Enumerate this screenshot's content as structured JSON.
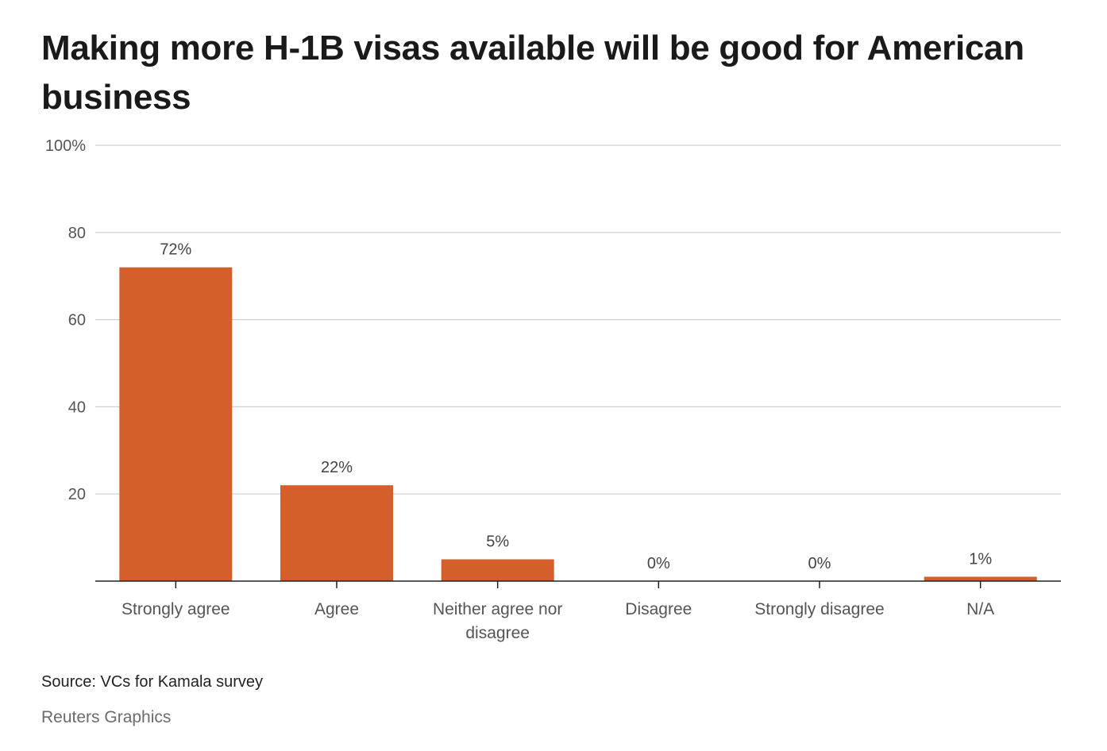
{
  "title": "Making more H-1B visas available will be good for American business",
  "chart_data": {
    "type": "bar",
    "title": "Making more H-1B visas available will be good for American business",
    "categories": [
      "Strongly agree",
      "Agree",
      "Neither agree nor disagree",
      "Disagree",
      "Strongly disagree",
      "N/A"
    ],
    "category_lines": [
      [
        "Strongly agree"
      ],
      [
        "Agree"
      ],
      [
        "Neither agree nor",
        "disagree"
      ],
      [
        "Disagree"
      ],
      [
        "Strongly disagree"
      ],
      [
        "N/A"
      ]
    ],
    "values": [
      72,
      22,
      5,
      0,
      0,
      1
    ],
    "value_labels": [
      "72%",
      "22%",
      "5%",
      "0%",
      "0%",
      "1%"
    ],
    "yticks": [
      20,
      40,
      60,
      80,
      100
    ],
    "ytick_labels": [
      "20",
      "40",
      "60",
      "80",
      "100%"
    ],
    "ylim": [
      0,
      100
    ],
    "grid": true,
    "bar_color": "#d45f2a"
  },
  "footer": {
    "source": "Source: VCs for Kamala survey",
    "credit": "Reuters Graphics"
  }
}
